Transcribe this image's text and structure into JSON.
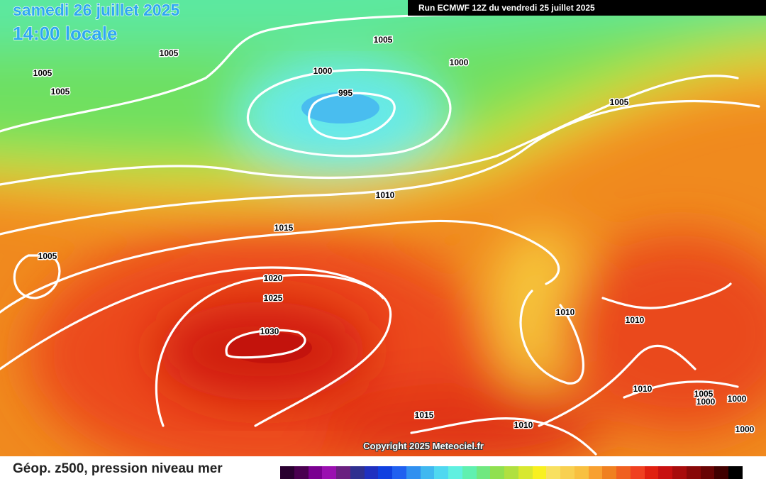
{
  "header": {
    "date": "samedi 26 juillet 2025",
    "time": "14:00 locale",
    "run": "Run ECMWF 12Z du vendredi 25 juillet 2025"
  },
  "isobar_labels": [
    "1005",
    "1005",
    "1005",
    "1005",
    "1000",
    "1000",
    "995",
    "1005",
    "1010",
    "1015",
    "1005",
    "1020",
    "1025",
    "1030",
    "1010",
    "1010",
    "1010",
    "1005",
    "1000",
    "1000",
    "1015",
    "1010",
    "1000"
  ],
  "copyright": "Copyright 2025 Meteociel.fr",
  "footer": {
    "caption": "Géop. z500, pression niveau mer"
  }
}
